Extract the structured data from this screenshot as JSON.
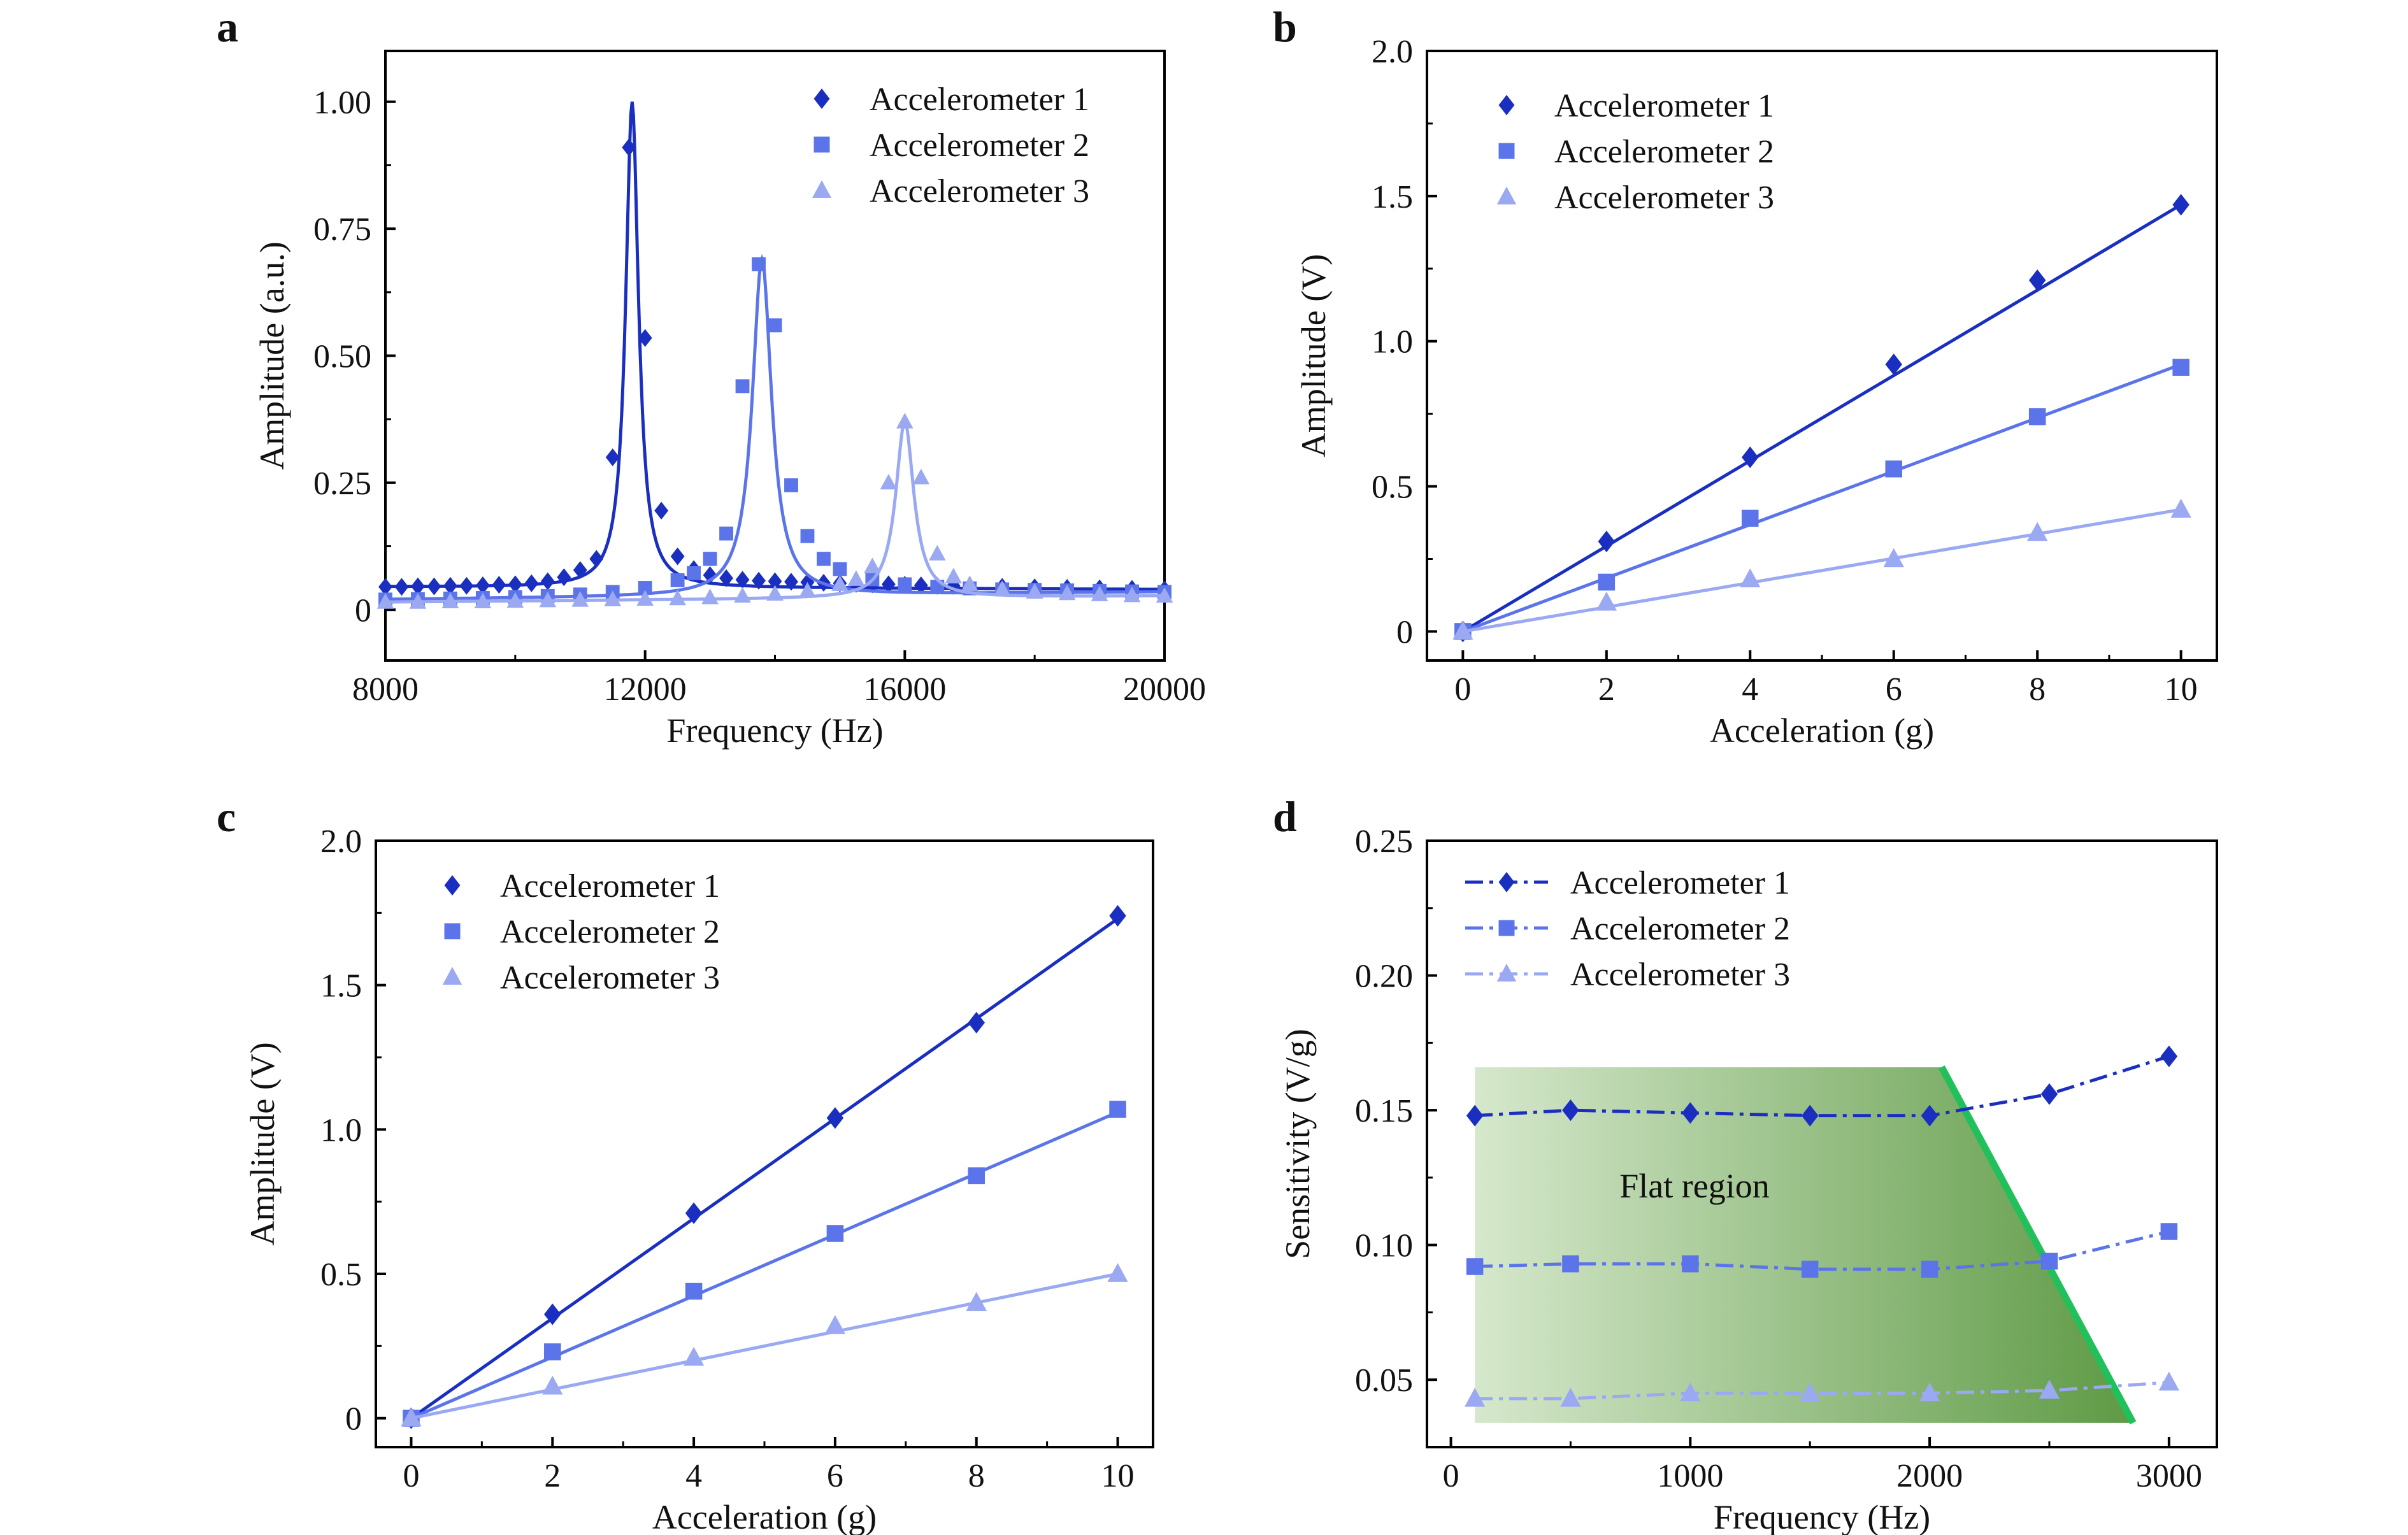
{
  "colors": {
    "accelerometer_1": "#1a2fc0",
    "accelerometer_2": "#5c74ea",
    "accelerometer_3": "#9aa9f2",
    "flat_region_light": "#d6e8cc",
    "flat_region_dark": "#5e9a45",
    "boundary_line": "#22c05a",
    "axis": "#000000"
  },
  "chart_data": [
    {
      "id": "a",
      "panel_label": "a",
      "type": "line",
      "xlabel": "Frequency (Hz)",
      "ylabel": "Amplitude (a.u.)",
      "xlim": [
        8000,
        20000
      ],
      "ylim": [
        -0.1,
        1.1
      ],
      "xticks": [
        8000,
        12000,
        16000,
        20000
      ],
      "xtick_labels": [
        "8000",
        "12000",
        "16000",
        "20000"
      ],
      "yticks": [
        0,
        0.25,
        0.5,
        0.75,
        1.0
      ],
      "ytick_labels": [
        "0",
        "0.25",
        "0.50",
        "0.75",
        "1.00"
      ],
      "legend_position": "top-right",
      "series": [
        {
          "name": "Accelerometer 1",
          "marker": "diamond",
          "x": [
            8000,
            8250,
            8500,
            8750,
            9000,
            9250,
            9500,
            9750,
            10000,
            10250,
            10500,
            10750,
            11000,
            11250,
            11500,
            11750,
            12000,
            12250,
            12500,
            12750,
            13000,
            13250,
            13500,
            13750,
            14000,
            14250,
            14500,
            14750,
            15000,
            15250,
            15500,
            15750,
            16000,
            16250,
            16500,
            16750,
            17000,
            17500,
            18000,
            18500,
            19000,
            19500,
            20000
          ],
          "y": [
            0.045,
            0.045,
            0.046,
            0.046,
            0.047,
            0.047,
            0.048,
            0.049,
            0.05,
            0.052,
            0.056,
            0.064,
            0.078,
            0.1,
            0.3,
            0.91,
            0.535,
            0.195,
            0.105,
            0.08,
            0.068,
            0.062,
            0.059,
            0.057,
            0.056,
            0.055,
            0.054,
            0.053,
            0.052,
            0.051,
            0.05,
            0.05,
            0.049,
            0.048,
            0.047,
            0.047,
            0.046,
            0.045,
            0.044,
            0.043,
            0.042,
            0.041,
            0.04
          ],
          "fit_peak_x": 11800,
          "fit_peak_y": 1.0
        },
        {
          "name": "Accelerometer 2",
          "marker": "square",
          "x": [
            8000,
            8500,
            9000,
            9500,
            10000,
            10500,
            11000,
            11500,
            12000,
            12500,
            12750,
            13000,
            13250,
            13500,
            13750,
            14000,
            14250,
            14500,
            14750,
            15000,
            15500,
            16000,
            16500,
            17000,
            17500,
            18000,
            18500,
            19000,
            19500,
            20000
          ],
          "y": [
            0.02,
            0.021,
            0.022,
            0.023,
            0.025,
            0.027,
            0.03,
            0.035,
            0.043,
            0.058,
            0.072,
            0.1,
            0.15,
            0.44,
            0.68,
            0.56,
            0.245,
            0.145,
            0.1,
            0.08,
            0.06,
            0.05,
            0.045,
            0.042,
            0.04,
            0.039,
            0.038,
            0.037,
            0.036,
            0.035
          ],
          "fit_peak_x": 13800,
          "fit_peak_y": 0.69
        },
        {
          "name": "Accelerometer 3",
          "marker": "triangle",
          "x": [
            8000,
            8500,
            9000,
            9500,
            10000,
            10500,
            11000,
            11500,
            12000,
            12500,
            13000,
            13500,
            14000,
            14500,
            15000,
            15250,
            15500,
            15750,
            16000,
            16250,
            16500,
            16750,
            17000,
            17500,
            18000,
            18500,
            19000,
            19500,
            20000
          ],
          "y": [
            0.015,
            0.015,
            0.016,
            0.016,
            0.017,
            0.018,
            0.019,
            0.02,
            0.021,
            0.022,
            0.024,
            0.027,
            0.031,
            0.037,
            0.05,
            0.06,
            0.085,
            0.25,
            0.37,
            0.26,
            0.11,
            0.065,
            0.05,
            0.04,
            0.035,
            0.032,
            0.03,
            0.028,
            0.027
          ],
          "fit_peak_x": 16000,
          "fit_peak_y": 0.37
        }
      ]
    },
    {
      "id": "b",
      "panel_label": "b",
      "type": "scatter",
      "xlabel": "Acceleration (g)",
      "ylabel": "Amplitude (V)",
      "xlim": [
        -0.5,
        10.5
      ],
      "ylim": [
        -0.1,
        2.0
      ],
      "xticks": [
        0,
        2,
        4,
        6,
        8,
        10
      ],
      "xtick_labels": [
        "0",
        "2",
        "4",
        "6",
        "8",
        "10"
      ],
      "yticks": [
        0,
        0.5,
        1.0,
        1.5,
        2.0
      ],
      "ytick_labels": [
        "0",
        "0.5",
        "1.0",
        "1.5",
        "2.0"
      ],
      "legend_position": "top-left",
      "series": [
        {
          "name": "Accelerometer 1",
          "marker": "diamond",
          "x": [
            0,
            2,
            4,
            6,
            8,
            10
          ],
          "y": [
            0,
            0.31,
            0.6,
            0.92,
            1.21,
            1.47
          ],
          "fit_slope": 0.147
        },
        {
          "name": "Accelerometer 2",
          "marker": "square",
          "x": [
            0,
            2,
            4,
            6,
            8,
            10
          ],
          "y": [
            0,
            0.17,
            0.39,
            0.56,
            0.74,
            0.91
          ],
          "fit_slope": 0.092
        },
        {
          "name": "Accelerometer 3",
          "marker": "triangle",
          "x": [
            0,
            2,
            4,
            6,
            8,
            10
          ],
          "y": [
            0,
            0.1,
            0.18,
            0.25,
            0.34,
            0.42
          ],
          "fit_slope": 0.042
        }
      ]
    },
    {
      "id": "c",
      "panel_label": "c",
      "type": "scatter",
      "xlabel": "Acceleration (g)",
      "ylabel": "Amplitude (V)",
      "xlim": [
        -0.5,
        10.5
      ],
      "ylim": [
        -0.1,
        2.0
      ],
      "xticks": [
        0,
        2,
        4,
        6,
        8,
        10
      ],
      "xtick_labels": [
        "0",
        "2",
        "4",
        "6",
        "8",
        "10"
      ],
      "yticks": [
        0,
        0.5,
        1.0,
        1.5,
        2.0
      ],
      "ytick_labels": [
        "0",
        "0.5",
        "1.0",
        "1.5",
        "2.0"
      ],
      "legend_position": "top-left",
      "series": [
        {
          "name": "Accelerometer 1",
          "marker": "diamond",
          "x": [
            0,
            2,
            4,
            6,
            8,
            10
          ],
          "y": [
            0,
            0.36,
            0.71,
            1.04,
            1.37,
            1.74
          ],
          "fit_slope": 0.173
        },
        {
          "name": "Accelerometer 2",
          "marker": "square",
          "x": [
            0,
            2,
            4,
            6,
            8,
            10
          ],
          "y": [
            0,
            0.23,
            0.44,
            0.64,
            0.84,
            1.07
          ],
          "fit_slope": 0.106
        },
        {
          "name": "Accelerometer 3",
          "marker": "triangle",
          "x": [
            0,
            2,
            4,
            6,
            8,
            10
          ],
          "y": [
            0,
            0.11,
            0.21,
            0.32,
            0.4,
            0.5
          ],
          "fit_slope": 0.05
        }
      ]
    },
    {
      "id": "d",
      "panel_label": "d",
      "type": "line",
      "xlabel": "Frequency (Hz)",
      "ylabel": "Sensitivity (V/g)",
      "xlim": [
        -100,
        3200
      ],
      "ylim": [
        0.025,
        0.25
      ],
      "xticks": [
        0,
        1000,
        2000,
        3000
      ],
      "xtick_labels": [
        "0",
        "1000",
        "2000",
        "3000"
      ],
      "yticks": [
        0.05,
        0.1,
        0.15,
        0.2,
        0.25
      ],
      "ytick_labels": [
        "0.05",
        "0.10",
        "0.15",
        "0.20",
        "0.25"
      ],
      "legend_position": "top-left",
      "annotation": "Flat region",
      "flat_region": {
        "x_start": 100,
        "x_top_end": 2050,
        "x_bottom_end": 2850,
        "y_top": 0.166,
        "y_bottom": 0.034
      },
      "series": [
        {
          "name": "Accelerometer 1",
          "marker": "diamond",
          "x": [
            100,
            500,
            1000,
            1500,
            2000,
            2500,
            3000
          ],
          "y": [
            0.148,
            0.15,
            0.149,
            0.148,
            0.148,
            0.156,
            0.17
          ]
        },
        {
          "name": "Accelerometer 2",
          "marker": "square",
          "x": [
            100,
            500,
            1000,
            1500,
            2000,
            2500,
            3000
          ],
          "y": [
            0.092,
            0.093,
            0.093,
            0.091,
            0.091,
            0.094,
            0.105
          ]
        },
        {
          "name": "Accelerometer 3",
          "marker": "triangle",
          "x": [
            100,
            500,
            1000,
            1500,
            2000,
            2500,
            3000
          ],
          "y": [
            0.043,
            0.043,
            0.045,
            0.045,
            0.045,
            0.046,
            0.049
          ]
        }
      ]
    }
  ]
}
